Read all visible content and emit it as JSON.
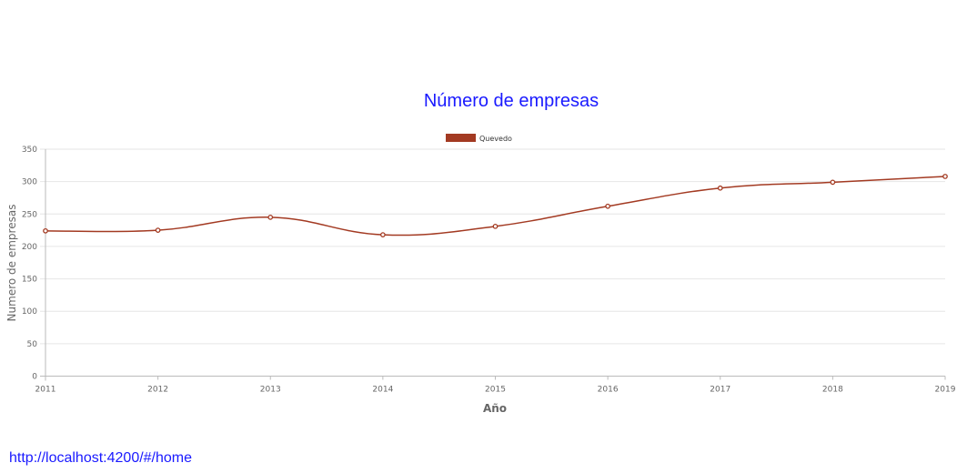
{
  "chart_data": {
    "type": "line",
    "title": "Número de empresas",
    "xlabel": "Año",
    "ylabel": "Numero de empresas",
    "categories": [
      "2011",
      "2012",
      "2013",
      "2014",
      "2015",
      "2016",
      "2017",
      "2018",
      "2019"
    ],
    "series": [
      {
        "name": "Quevedo",
        "values": [
          224,
          225,
          245,
          218,
          231,
          262,
          290,
          299,
          308
        ],
        "color": "#a33a22"
      }
    ],
    "ylim": [
      0,
      350
    ],
    "yticks": [
      0,
      50,
      100,
      150,
      200,
      250,
      300,
      350
    ],
    "grid": true,
    "legend_position": "top"
  },
  "footer": {
    "url": "http://localhost:4200/#/home"
  }
}
